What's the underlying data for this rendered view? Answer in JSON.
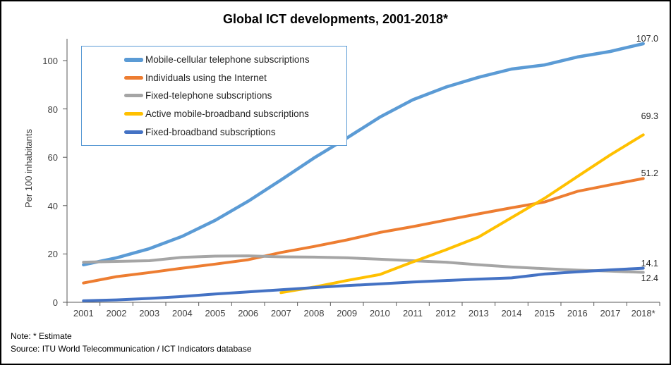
{
  "title": "Global ICT developments, 2001-2018*",
  "note": "Note: * Estimate",
  "source": "Source:  ITU World Telecommunication / ICT Indicators database",
  "y_axis": {
    "label": "Per 100 inhabitants"
  },
  "colors": {
    "mobile_cellular": "#5b9bd5",
    "internet": "#ed7d31",
    "fixed_telephone": "#a5a5a5",
    "mobile_broadband": "#ffc000",
    "fixed_broadband": "#4472c4",
    "axis": "#595959",
    "legend_border": "#5b9bd5"
  },
  "chart_data": {
    "type": "line",
    "title": "Global ICT developments, 2001-2018*",
    "ylabel": "Per 100 inhabitants",
    "ylim": [
      0,
      110
    ],
    "yticks": [
      0,
      20,
      40,
      60,
      80,
      100
    ],
    "grid": false,
    "legend_position": "upper-left-inside",
    "x_tick_labels": [
      "2001",
      "2002",
      "2003",
      "2004",
      "2005",
      "2006",
      "2007",
      "2008",
      "2009",
      "2010",
      "2011",
      "2012",
      "2013",
      "2014",
      "2015",
      "2016",
      "2017",
      "2018*"
    ],
    "series": [
      {
        "name": "Mobile-cellular telephone subscriptions",
        "color": "#5b9bd5",
        "end_label": "107.0",
        "values": [
          15.5,
          18.4,
          22.2,
          27.3,
          33.9,
          41.8,
          50.6,
          59.7,
          68.0,
          76.6,
          83.8,
          89.0,
          93.1,
          96.5,
          98.2,
          101.5,
          103.8,
          107.0
        ]
      },
      {
        "name": "Individuals using the Internet",
        "color": "#ed7d31",
        "end_label": "51.2",
        "values": [
          8.0,
          10.6,
          12.3,
          14.1,
          15.8,
          17.6,
          20.6,
          23.1,
          25.8,
          28.9,
          31.3,
          34.0,
          36.6,
          39.1,
          41.5,
          45.9,
          48.6,
          51.2
        ]
      },
      {
        "name": "Fixed-telephone subscriptions",
        "color": "#a5a5a5",
        "end_label": "12.4",
        "values": [
          16.6,
          16.9,
          17.2,
          18.6,
          19.1,
          19.2,
          18.8,
          18.7,
          18.4,
          17.8,
          17.2,
          16.6,
          15.5,
          14.6,
          13.9,
          13.3,
          12.9,
          12.4
        ]
      },
      {
        "name": "Active mobile-broadband subscriptions",
        "color": "#ffc000",
        "end_label": "69.3",
        "values": [
          null,
          null,
          null,
          null,
          null,
          null,
          4.0,
          6.3,
          9.0,
          11.5,
          16.7,
          21.7,
          27.0,
          35.0,
          43.0,
          52.0,
          61.0,
          69.3
        ]
      },
      {
        "name": "Fixed-broadband subscriptions",
        "color": "#4472c4",
        "end_label": "14.1",
        "values": [
          0.6,
          1.0,
          1.6,
          2.4,
          3.4,
          4.3,
          5.2,
          6.1,
          6.9,
          7.6,
          8.4,
          9.0,
          9.6,
          10.1,
          11.7,
          12.6,
          13.4,
          14.1
        ]
      }
    ]
  }
}
